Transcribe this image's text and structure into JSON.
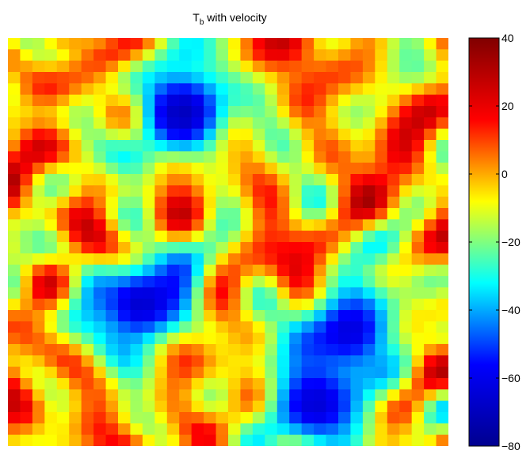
{
  "chart_data": {
    "type": "heatmap",
    "title": {
      "main": "T",
      "subscript": "b",
      "suffix": " with velocity"
    },
    "xlabel": "",
    "ylabel": "",
    "colorbar": {
      "range": [
        -80,
        40
      ],
      "ticks": [
        40,
        20,
        0,
        -20,
        -40,
        -60,
        -80
      ],
      "tick_labels": [
        "40",
        "20",
        "0",
        "−20",
        "−40",
        "−60",
        "−80"
      ],
      "colormap": "jet"
    },
    "grid": false,
    "field": {
      "resolution": [
        36,
        36
      ],
      "value_range": [
        -80,
        40
      ],
      "note_regions_min": [
        {
          "cx": 0.4,
          "cy": 0.18,
          "peak": -75
        },
        {
          "cx": 0.3,
          "cy": 0.65,
          "peak": -75
        },
        {
          "cx": 0.78,
          "cy": 0.72,
          "peak": -70
        },
        {
          "cx": 0.7,
          "cy": 0.9,
          "peak": -70
        }
      ]
    }
  },
  "colors": {
    "jet_stops": [
      "#00008f",
      "#0000ff",
      "#00ffff",
      "#ffff00",
      "#ff0000",
      "#800000"
    ]
  }
}
